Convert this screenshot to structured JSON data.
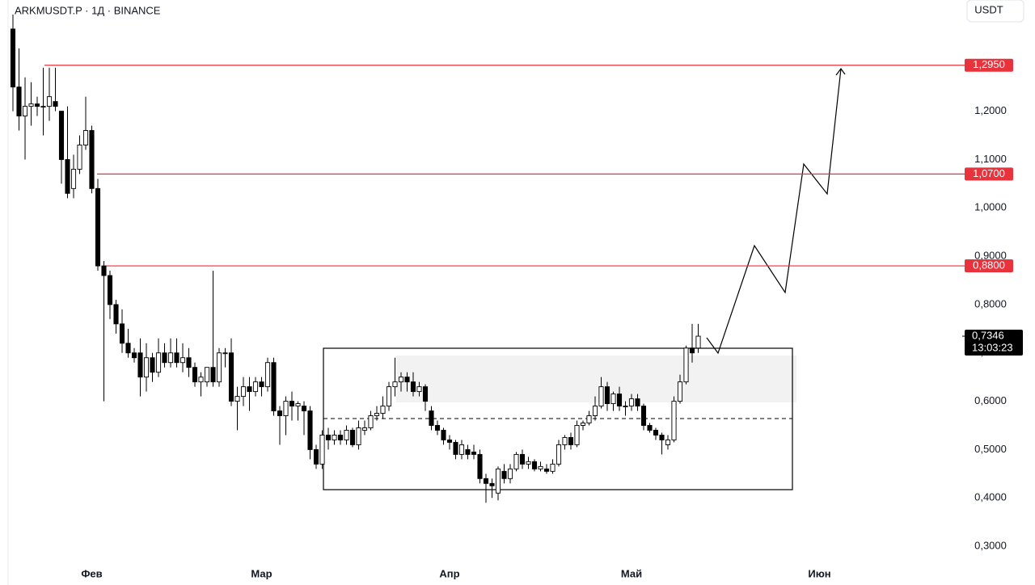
{
  "chart_data": {
    "type": "candlestick",
    "title": "ARKMUSDT.P · 1Д · BINANCE",
    "currency": "USDT",
    "up_color": "#ffffff",
    "down_color": "#000000",
    "outline_color": "#000000",
    "level_color": "#e8323c",
    "ylim": [
      0.26,
      1.43
    ],
    "yticks": [
      {
        "value": 0.3,
        "label": "0,3000"
      },
      {
        "value": 0.4,
        "label": "0,4000"
      },
      {
        "value": 0.5,
        "label": "0,5000"
      },
      {
        "value": 0.6,
        "label": "0,6000"
      },
      {
        "value": 0.7,
        "label": "0,7000"
      },
      {
        "value": 0.8,
        "label": "0,8000"
      },
      {
        "value": 0.9,
        "label": "0,9000"
      },
      {
        "value": 1.0,
        "label": "1,0000"
      },
      {
        "value": 1.1,
        "label": "1,1000"
      },
      {
        "value": 1.2,
        "label": "1,2000"
      }
    ],
    "xlim": [
      -2.133,
      156.533
    ],
    "xticks": [
      {
        "value": 13,
        "label": "Фев"
      },
      {
        "value": 41,
        "label": "Мар"
      },
      {
        "value": 72,
        "label": "Апр"
      },
      {
        "value": 102,
        "label": "Май"
      },
      {
        "value": 133,
        "label": "Июн"
      }
    ],
    "levels": [
      {
        "value": 1.295,
        "label": "1,2950"
      },
      {
        "value": 1.07,
        "label": "1,0700"
      },
      {
        "value": 0.88,
        "label": "0,8800"
      }
    ],
    "last_price": {
      "value": 0.7346,
      "label": "0,7346"
    },
    "countdown": "13:03:23",
    "open": [
      1.37,
      1.25,
      1.19,
      1.21,
      1.215,
      1.21,
      1.21,
      1.22,
      1.2,
      1.1,
      1.04,
      1.08,
      1.13,
      1.16,
      1.04,
      0.88,
      0.86,
      0.8,
      0.76,
      0.72,
      0.7,
      0.7,
      0.65,
      0.69,
      0.66,
      0.7,
      0.68,
      0.7,
      0.68,
      0.69,
      0.67,
      0.64,
      0.64,
      0.67,
      0.64,
      0.7,
      0.7,
      0.6,
      0.61,
      0.63,
      0.62,
      0.64,
      0.63,
      0.68,
      0.58,
      0.57,
      0.6,
      0.59,
      0.59,
      0.58,
      0.5,
      0.47,
      0.53,
      0.52,
      0.53,
      0.52,
      0.54,
      0.51,
      0.54,
      0.545,
      0.57,
      0.575,
      0.59,
      0.63,
      0.64,
      0.65,
      0.64,
      0.62,
      0.63,
      0.58,
      0.55,
      0.54,
      0.52,
      0.515,
      0.49,
      0.5,
      0.495,
      0.49,
      0.44,
      0.43,
      0.41,
      0.455,
      0.44,
      0.46,
      0.49,
      0.47,
      0.475,
      0.46,
      0.46,
      0.455,
      0.47,
      0.51,
      0.525,
      0.51,
      0.55,
      0.555,
      0.57,
      0.59,
      0.63,
      0.595,
      0.615,
      0.59,
      0.59,
      0.605,
      0.59,
      0.55,
      0.54,
      0.53,
      0.51,
      0.52,
      0.6,
      0.64,
      0.71,
      0.71
    ],
    "high": [
      1.4,
      1.33,
      1.27,
      1.26,
      1.23,
      1.29,
      1.29,
      1.29,
      1.2,
      1.21,
      1.11,
      1.15,
      1.23,
      1.17,
      1.06,
      0.89,
      0.87,
      0.81,
      0.79,
      0.75,
      0.71,
      0.73,
      0.72,
      0.7,
      0.73,
      0.72,
      0.73,
      0.73,
      0.72,
      0.71,
      0.68,
      0.66,
      0.67,
      0.87,
      0.71,
      0.71,
      0.73,
      0.63,
      0.65,
      0.65,
      0.65,
      0.65,
      0.69,
      0.69,
      0.59,
      0.61,
      0.62,
      0.6,
      0.6,
      0.59,
      0.51,
      0.54,
      0.545,
      0.54,
      0.54,
      0.55,
      0.545,
      0.56,
      0.56,
      0.58,
      0.59,
      0.61,
      0.64,
      0.69,
      0.66,
      0.66,
      0.66,
      0.64,
      0.635,
      0.59,
      0.56,
      0.545,
      0.53,
      0.52,
      0.52,
      0.51,
      0.51,
      0.5,
      0.45,
      0.44,
      0.465,
      0.47,
      0.47,
      0.495,
      0.5,
      0.485,
      0.48,
      0.475,
      0.47,
      0.48,
      0.52,
      0.53,
      0.535,
      0.56,
      0.56,
      0.58,
      0.61,
      0.65,
      0.64,
      0.62,
      0.63,
      0.6,
      0.615,
      0.615,
      0.595,
      0.555,
      0.545,
      0.535,
      0.53,
      0.61,
      0.655,
      0.715,
      0.76,
      0.76
    ],
    "low": [
      1.2,
      1.16,
      1.1,
      1.17,
      1.19,
      1.15,
      1.18,
      1.2,
      1.05,
      1.02,
      1.02,
      1.07,
      1.12,
      1.03,
      0.87,
      0.6,
      0.77,
      0.74,
      0.7,
      0.69,
      0.68,
      0.61,
      0.62,
      0.64,
      0.65,
      0.67,
      0.67,
      0.67,
      0.66,
      0.65,
      0.63,
      0.61,
      0.63,
      0.63,
      0.63,
      0.67,
      0.59,
      0.54,
      0.59,
      0.58,
      0.61,
      0.61,
      0.62,
      0.57,
      0.51,
      0.53,
      0.56,
      0.56,
      0.53,
      0.48,
      0.46,
      0.46,
      0.5,
      0.51,
      0.51,
      0.51,
      0.505,
      0.5,
      0.53,
      0.54,
      0.56,
      0.565,
      0.58,
      0.61,
      0.62,
      0.62,
      0.61,
      0.61,
      0.58,
      0.54,
      0.53,
      0.51,
      0.5,
      0.48,
      0.48,
      0.48,
      0.48,
      0.43,
      0.39,
      0.4,
      0.395,
      0.43,
      0.43,
      0.455,
      0.46,
      0.46,
      0.455,
      0.455,
      0.45,
      0.45,
      0.465,
      0.5,
      0.5,
      0.505,
      0.54,
      0.55,
      0.56,
      0.585,
      0.58,
      0.58,
      0.58,
      0.57,
      0.58,
      0.58,
      0.54,
      0.535,
      0.52,
      0.49,
      0.5,
      0.515,
      0.595,
      0.635,
      0.68,
      0.7
    ],
    "close": [
      1.25,
      1.19,
      1.21,
      1.215,
      1.21,
      1.21,
      1.23,
      1.21,
      1.1,
      1.03,
      1.08,
      1.13,
      1.16,
      1.04,
      0.88,
      0.86,
      0.8,
      0.76,
      0.72,
      0.7,
      0.69,
      0.65,
      0.69,
      0.66,
      0.7,
      0.68,
      0.7,
      0.68,
      0.69,
      0.67,
      0.64,
      0.65,
      0.67,
      0.64,
      0.7,
      0.7,
      0.6,
      0.61,
      0.63,
      0.62,
      0.64,
      0.63,
      0.68,
      0.58,
      0.57,
      0.6,
      0.59,
      0.595,
      0.58,
      0.5,
      0.47,
      0.53,
      0.52,
      0.53,
      0.52,
      0.54,
      0.51,
      0.545,
      0.545,
      0.57,
      0.575,
      0.59,
      0.63,
      0.64,
      0.65,
      0.64,
      0.62,
      0.63,
      0.6,
      0.55,
      0.54,
      0.52,
      0.515,
      0.49,
      0.51,
      0.49,
      0.49,
      0.44,
      0.43,
      0.425,
      0.46,
      0.44,
      0.46,
      0.49,
      0.47,
      0.475,
      0.46,
      0.465,
      0.455,
      0.47,
      0.51,
      0.525,
      0.51,
      0.55,
      0.555,
      0.57,
      0.59,
      0.63,
      0.595,
      0.615,
      0.59,
      0.59,
      0.605,
      0.59,
      0.55,
      0.54,
      0.53,
      0.52,
      0.52,
      0.6,
      0.64,
      0.71,
      0.7,
      0.7346
    ]
  }
}
